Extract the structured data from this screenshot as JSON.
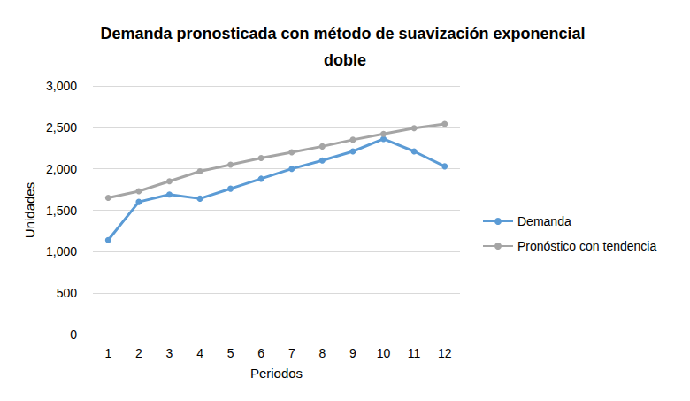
{
  "chart_data": {
    "type": "line",
    "title": "Demanda pronosticada con método de suavización exponencial doble",
    "x_label": "Periodos",
    "y_label": "Unidades",
    "categories": [
      "1",
      "2",
      "3",
      "4",
      "5",
      "6",
      "7",
      "8",
      "9",
      "10",
      "11",
      "12"
    ],
    "series": [
      {
        "name": "Demanda",
        "color": "#5b9bd5",
        "marker": "circle",
        "values": [
          1140,
          1600,
          1690,
          1640,
          1760,
          1880,
          2000,
          2100,
          2210,
          2360,
          2210,
          2030
        ]
      },
      {
        "name": "Pronóstico con tendencia",
        "color": "#a5a5a5",
        "marker": "circle",
        "values": [
          1650,
          1730,
          1850,
          1970,
          2050,
          2130,
          2200,
          2270,
          2350,
          2420,
          2490,
          2540
        ]
      }
    ],
    "ylim": [
      0,
      3000
    ],
    "yticks": [
      0,
      500,
      1000,
      1500,
      2000,
      2500,
      3000
    ],
    "grid": true,
    "legend": "right"
  }
}
